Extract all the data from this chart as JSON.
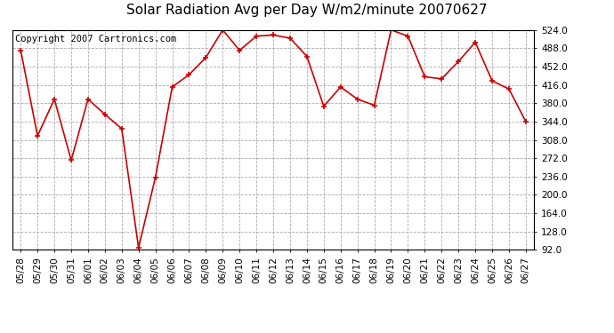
{
  "title": "Solar Radiation Avg per Day W/m2/minute 20070627",
  "copyright_text": "Copyright 2007 Cartronics.com",
  "labels": [
    "05/28",
    "05/29",
    "05/30",
    "05/31",
    "06/01",
    "06/02",
    "06/03",
    "06/04",
    "06/05",
    "06/06",
    "06/07",
    "06/08",
    "06/09",
    "06/10",
    "06/11",
    "06/12",
    "06/13",
    "06/14",
    "06/15",
    "06/16",
    "06/17",
    "06/18",
    "06/19",
    "06/20",
    "06/21",
    "06/22",
    "06/23",
    "06/24",
    "06/25",
    "06/26",
    "06/27"
  ],
  "values": [
    484,
    316,
    388,
    268,
    388,
    358,
    330,
    96,
    234,
    412,
    436,
    470,
    524,
    484,
    512,
    514,
    508,
    472,
    374,
    412,
    388,
    376,
    524,
    512,
    432,
    428,
    462,
    500,
    424,
    408,
    344
  ],
  "line_color": "#cc0000",
  "marker_color": "#cc0000",
  "background_color": "#ffffff",
  "plot_bg_color": "#ffffff",
  "grid_color": "#aaaaaa",
  "ymin": 92.0,
  "ymax": 524.0,
  "ytick_step": 36.0,
  "title_fontsize": 11,
  "copyright_fontsize": 7.5,
  "tick_fontsize": 7.5
}
